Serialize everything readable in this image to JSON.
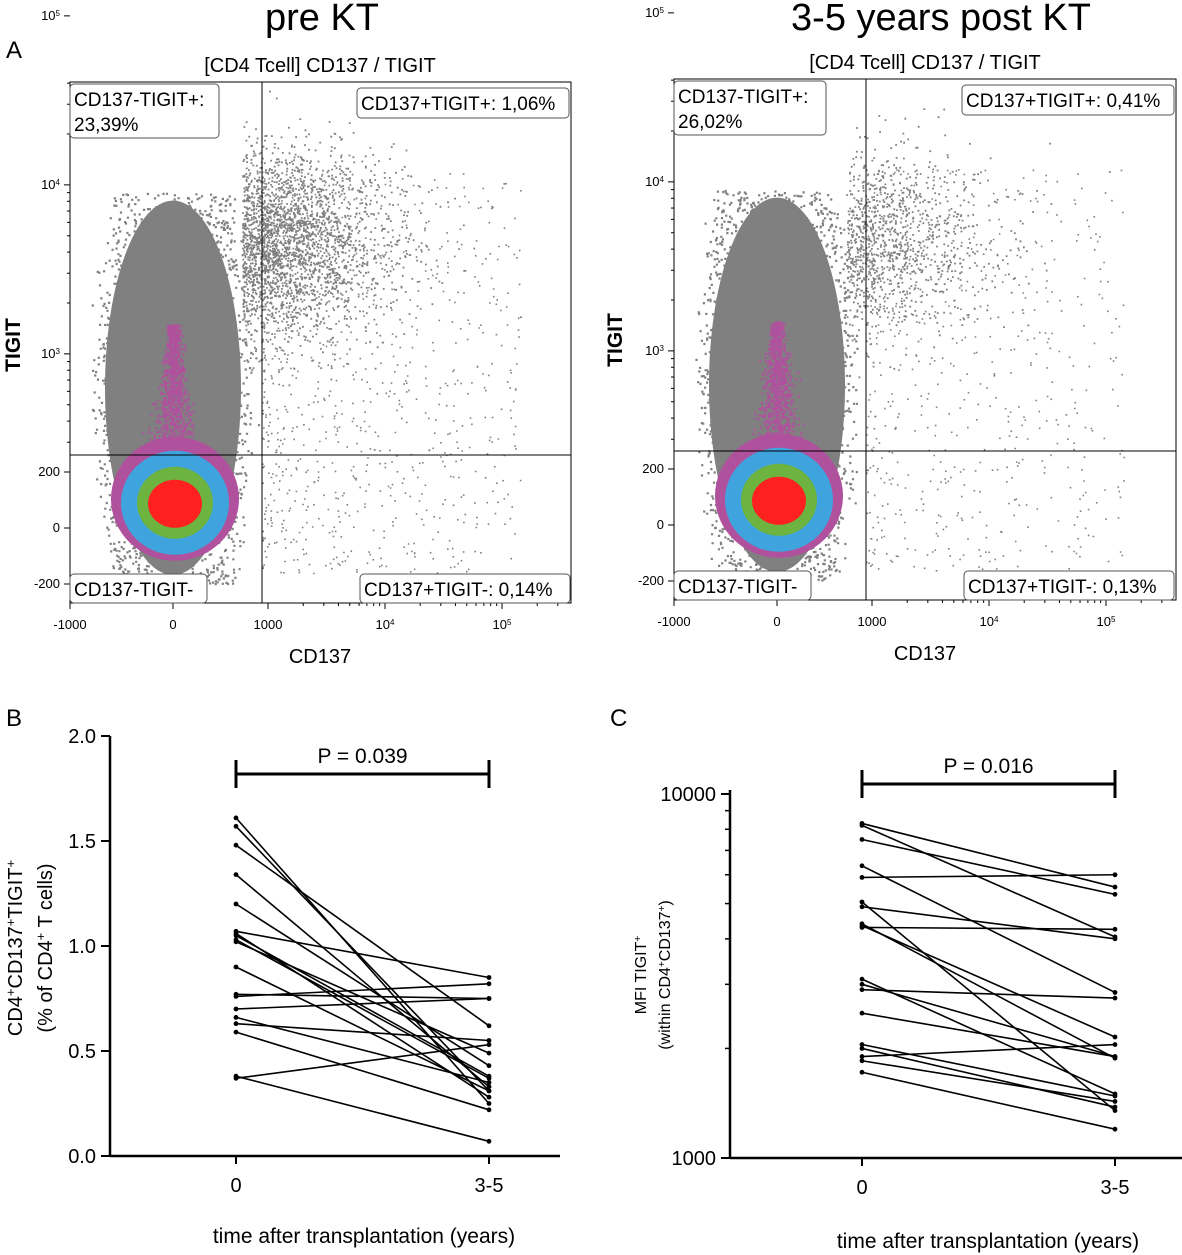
{
  "panel_labels": {
    "A": "A",
    "B": "B",
    "C": "C"
  },
  "colors": {
    "grey": "#808080",
    "magenta": "#b0519e",
    "blue": "#3fa3de",
    "green": "#6cb33f",
    "red": "#ff2020",
    "black": "#000000"
  },
  "chart_data": [
    {
      "type": "scatter",
      "subtype": "flow-cytometry-density",
      "title": "pre KT",
      "subtitle": "[CD4 Tcell] CD137 / TIGIT",
      "xlabel": "CD137",
      "ylabel": "TIGIT",
      "x_ticks": [
        {
          "value": -1000,
          "text": "-1000"
        },
        {
          "value": 0,
          "text": "0"
        },
        {
          "value": 1000,
          "text": "1000"
        },
        {
          "value": 10000,
          "base": "10",
          "exp": "4"
        },
        {
          "value": 100000,
          "base": "10",
          "exp": "5"
        }
      ],
      "y_ticks": [
        {
          "value": -200,
          "text": "-200"
        },
        {
          "value": 0,
          "text": "0"
        },
        {
          "value": 200,
          "text": "200"
        },
        {
          "value": 1000,
          "base": "10",
          "exp": "3"
        },
        {
          "value": 10000,
          "base": "10",
          "exp": "4"
        },
        {
          "value": 100000,
          "base": "10",
          "exp": "5"
        }
      ],
      "quadrants": {
        "top_left": {
          "label": "CD137-TIGIT+:",
          "value": "23,39%"
        },
        "top_right": {
          "label": "CD137+TIGIT+: 1,06%"
        },
        "bottom_left": {
          "label": "CD137-TIGIT-"
        },
        "bottom_right": {
          "label": "CD137+TIGIT-: 0,14%"
        }
      }
    },
    {
      "type": "scatter",
      "subtype": "flow-cytometry-density",
      "title": "3-5 years post KT",
      "subtitle": "[CD4 Tcell] CD137 / TIGIT",
      "xlabel": "CD137",
      "ylabel": "TIGIT",
      "x_ticks": [
        {
          "value": -1000,
          "text": "-1000"
        },
        {
          "value": 0,
          "text": "0"
        },
        {
          "value": 1000,
          "text": "1000"
        },
        {
          "value": 10000,
          "base": "10",
          "exp": "4"
        },
        {
          "value": 100000,
          "base": "10",
          "exp": "5"
        }
      ],
      "y_ticks": [
        {
          "value": -200,
          "text": "-200"
        },
        {
          "value": 0,
          "text": "0"
        },
        {
          "value": 200,
          "text": "200"
        },
        {
          "value": 1000,
          "base": "10",
          "exp": "3"
        },
        {
          "value": 10000,
          "base": "10",
          "exp": "4"
        },
        {
          "value": 100000,
          "base": "10",
          "exp": "5"
        }
      ],
      "quadrants": {
        "top_left": {
          "label": "CD137-TIGIT+:",
          "value": "26,02%"
        },
        "top_right": {
          "label": "CD137+TIGIT+: 0,41%"
        },
        "bottom_left": {
          "label": "CD137-TIGIT-"
        },
        "bottom_right": {
          "label": "CD137+TIGIT-: 0,13%"
        }
      }
    },
    {
      "type": "line",
      "subtype": "paired-before-after",
      "categories": [
        "0",
        "3-5"
      ],
      "xlabel": "time after transplantation (years)",
      "ylabel_line1": {
        "parts": [
          [
            "CD4",
            ""
          ],
          [
            "+",
            "sup"
          ],
          [
            "CD137",
            ""
          ],
          [
            "+",
            "sup"
          ],
          [
            "TIGIT",
            ""
          ],
          [
            "+",
            "sup"
          ]
        ]
      },
      "ylabel_line2": {
        "parts": [
          [
            "(% of CD4",
            ""
          ],
          [
            "+",
            "sup"
          ],
          [
            " T cells)",
            ""
          ]
        ]
      },
      "ylim": [
        0,
        2.0
      ],
      "y_ticks": [
        "0.0",
        "0.5",
        "1.0",
        "1.5",
        "2.0"
      ],
      "significance": "P = 0.039",
      "pairs": [
        [
          1.61,
          0.25
        ],
        [
          1.57,
          0.31
        ],
        [
          1.48,
          0.62
        ],
        [
          1.34,
          0.33
        ],
        [
          1.2,
          0.43
        ],
        [
          1.07,
          0.85
        ],
        [
          1.06,
          0.28
        ],
        [
          1.05,
          0.38
        ],
        [
          1.03,
          0.37
        ],
        [
          1.02,
          0.49
        ],
        [
          0.9,
          0.31
        ],
        [
          0.77,
          0.75
        ],
        [
          0.76,
          0.82
        ],
        [
          0.7,
          0.75
        ],
        [
          0.66,
          0.35
        ],
        [
          0.63,
          0.55
        ],
        [
          0.59,
          0.22
        ],
        [
          0.38,
          0.07
        ],
        [
          0.37,
          0.53
        ]
      ]
    },
    {
      "type": "line",
      "subtype": "paired-before-after",
      "categories": [
        "0",
        "3-5"
      ],
      "xlabel": "time after transplantation (years)",
      "ylabel_line1": {
        "parts": [
          [
            "MFI TIGIT",
            ""
          ],
          [
            "+",
            "sup"
          ]
        ]
      },
      "ylabel_line2": {
        "parts": [
          [
            "(within CD4",
            ""
          ],
          [
            "+",
            "sup"
          ],
          [
            "CD137",
            ""
          ],
          [
            "+",
            "sup"
          ],
          [
            ")",
            ""
          ]
        ]
      },
      "yscale": "log",
      "ylim": [
        1000,
        10000
      ],
      "y_ticks": [
        "1000",
        "10000"
      ],
      "significance": "P = 0.016",
      "pairs": [
        [
          8300,
          5550
        ],
        [
          8200,
          4050
        ],
        [
          7500,
          5300
        ],
        [
          6350,
          2850
        ],
        [
          5900,
          6000
        ],
        [
          5050,
          1350
        ],
        [
          4900,
          4000
        ],
        [
          4400,
          1880
        ],
        [
          4350,
          2150
        ],
        [
          4300,
          4250
        ],
        [
          3100,
          1500
        ],
        [
          3000,
          1900
        ],
        [
          2900,
          2750
        ],
        [
          2500,
          1900
        ],
        [
          2050,
          1480
        ],
        [
          2000,
          1380
        ],
        [
          1900,
          2050
        ],
        [
          1850,
          1430
        ],
        [
          1720,
          1200
        ]
      ]
    }
  ]
}
